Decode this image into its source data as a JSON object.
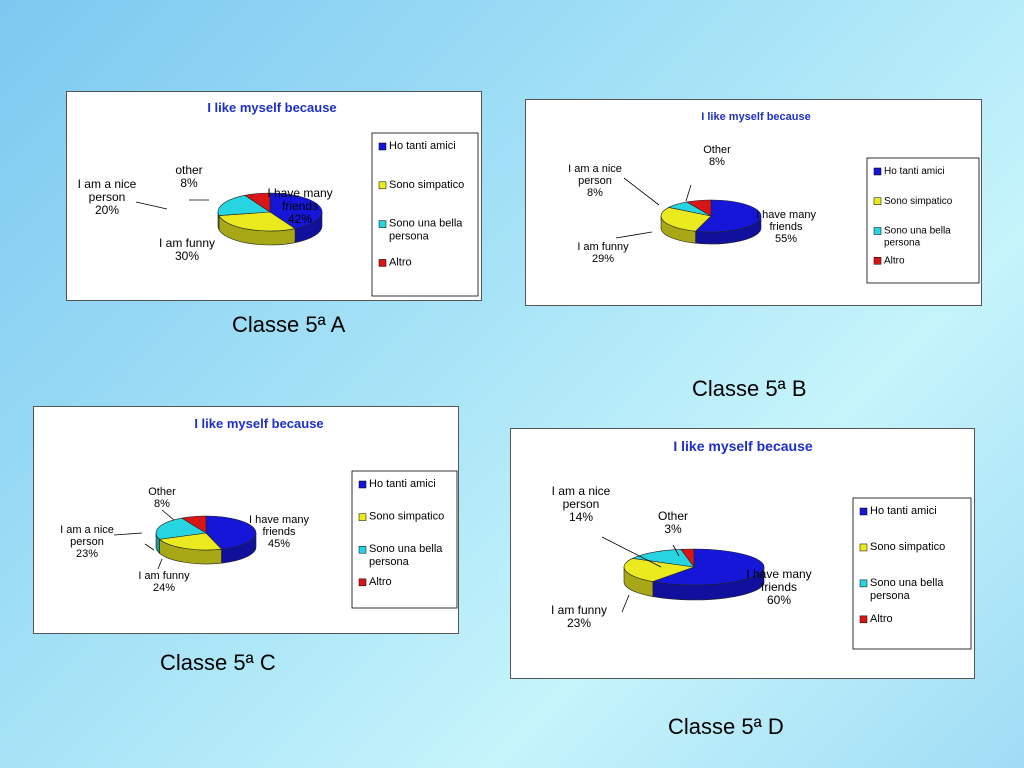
{
  "colors": {
    "friends": "#1616d8",
    "funny": "#eaea1e",
    "nice": "#26d4e2",
    "other": "#d81616"
  },
  "charts": [
    {
      "caption": "Classe 5ª A",
      "chart_data": {
        "type": "pie",
        "title": "I like myself because",
        "series": [
          {
            "name": "I have many friends",
            "value": 42,
            "label_lines": [
              "I have many",
              "friends",
              "42%"
            ]
          },
          {
            "name": "I am funny",
            "value": 30,
            "label_lines": [
              "I am funny",
              "30%"
            ]
          },
          {
            "name": "I am a nice person",
            "value": 20,
            "label_lines": [
              "I am a nice",
              "person",
              "20%"
            ]
          },
          {
            "name": "other",
            "value": 8,
            "label_lines": [
              "other",
              "8%"
            ]
          }
        ],
        "legend": {
          "position": "right",
          "items": [
            "Ho tanti amici",
            "Sono simpatico",
            "Sono una bella persona",
            "Altro"
          ]
        }
      }
    },
    {
      "caption": "Classe 5ª B",
      "chart_data": {
        "type": "pie",
        "title": "I like myself because",
        "series": [
          {
            "name": "I have many friends",
            "value": 55,
            "label_lines": [
              "I have many",
              "friends",
              "55%"
            ]
          },
          {
            "name": "I am funny",
            "value": 29,
            "label_lines": [
              "I am funny",
              "29%"
            ]
          },
          {
            "name": "I am a nice person",
            "value": 8,
            "label_lines": [
              "I am a nice",
              "person",
              "8%"
            ]
          },
          {
            "name": "Other",
            "value": 8,
            "label_lines": [
              "Other",
              "8%"
            ]
          }
        ],
        "legend": {
          "position": "right",
          "items": [
            "Ho tanti amici",
            "Sono simpatico",
            "Sono una bella persona",
            "Altro"
          ]
        }
      }
    },
    {
      "caption": "Classe 5ª C",
      "chart_data": {
        "type": "pie",
        "title": "I like myself because",
        "series": [
          {
            "name": "I have many friends",
            "value": 45,
            "label_lines": [
              "I have many",
              "friends",
              "45%"
            ]
          },
          {
            "name": "I am funny",
            "value": 24,
            "label_lines": [
              "I am funny",
              "24%"
            ]
          },
          {
            "name": "I am a nice person",
            "value": 23,
            "label_lines": [
              "I am a nice",
              "person",
              "23%"
            ]
          },
          {
            "name": "Other",
            "value": 8,
            "label_lines": [
              "Other",
              "8%"
            ]
          }
        ],
        "legend": {
          "position": "right",
          "items": [
            "Ho tanti amici",
            "Sono simpatico",
            "Sono una bella persona",
            "Altro"
          ]
        }
      }
    },
    {
      "caption": "Classe 5ª D",
      "chart_data": {
        "type": "pie",
        "title": "I like myself because",
        "series": [
          {
            "name": "I have many friends",
            "value": 60,
            "label_lines": [
              "I have many",
              "friends",
              "60%"
            ]
          },
          {
            "name": "I am funny",
            "value": 23,
            "label_lines": [
              "I am funny",
              "23%"
            ]
          },
          {
            "name": "I am a nice person",
            "value": 14,
            "label_lines": [
              "I am a nice",
              "person",
              "14%"
            ]
          },
          {
            "name": "Other",
            "value": 3,
            "label_lines": [
              "Other",
              "3%"
            ]
          }
        ],
        "legend": {
          "position": "right",
          "items": [
            "Ho tanti amici",
            "Sono simpatico",
            "Sono una bella persona",
            "Altro"
          ]
        }
      }
    }
  ]
}
